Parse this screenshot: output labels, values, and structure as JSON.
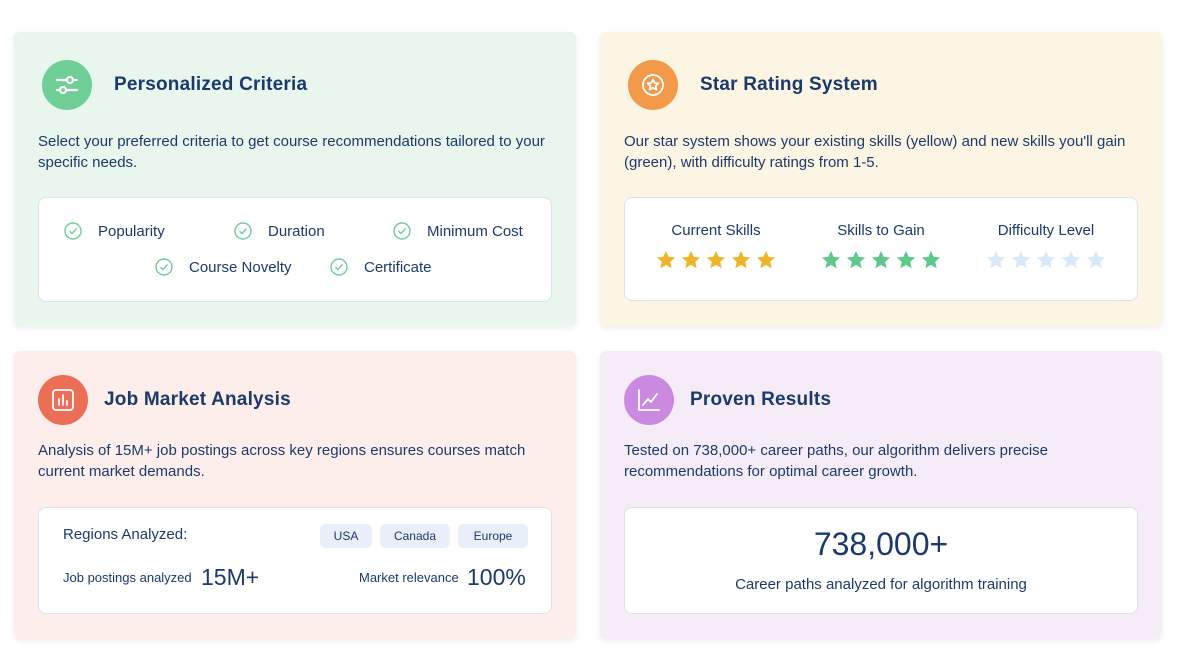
{
  "criteria": {
    "title": "Personalized Criteria",
    "description": "Select your preferred criteria to get course recommendations tailored to your specific needs.",
    "items": [
      "Popularity",
      "Duration",
      "Minimum Cost",
      "Course Novelty",
      "Certificate"
    ],
    "icon": "sliders-icon",
    "accent": "#6fcf97"
  },
  "stars": {
    "title": "Star Rating System",
    "description": "Our star system shows your existing skills (yellow) and new skills you'll gain (green), with difficulty ratings from 1-5.",
    "icon": "star-badge-icon",
    "accent": "#f2994a",
    "groups": [
      {
        "label": "Current Skills",
        "rating": 5,
        "max": 5,
        "color": "#f0b429"
      },
      {
        "label": "Skills to Gain",
        "rating": 5,
        "max": 5,
        "color": "#5fc98a"
      },
      {
        "label": "Difficulty Level",
        "rating": 0,
        "max": 5,
        "color": "#d9e9f7"
      }
    ]
  },
  "market": {
    "title": "Job Market Analysis",
    "description": "Analysis of 15M+ job postings across key regions ensures courses match current market demands.",
    "icon": "bar-chart-icon",
    "accent": "#eb6e56",
    "regions_label": "Regions Analyzed:",
    "regions": [
      "USA",
      "Canada",
      "Europe"
    ],
    "postings_label": "Job postings analyzed",
    "postings_value": "15M+",
    "relevance_label": "Market relevance",
    "relevance_value": "100%"
  },
  "results": {
    "title": "Proven Results",
    "description": "Tested on 738,000+ career paths, our algorithm delivers precise recommendations for optimal career growth.",
    "icon": "line-chart-icon",
    "accent": "#c98ae0",
    "big_number": "738,000+",
    "caption": "Career paths analyzed for algorithm training"
  }
}
